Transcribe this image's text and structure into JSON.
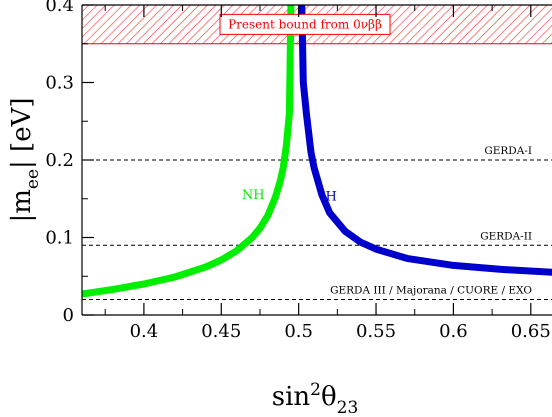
{
  "chart_data": {
    "type": "line",
    "title": "",
    "xlabel": "sin²θ₂₃",
    "xlabel_parts": {
      "base": "sin",
      "sup": "2",
      "theta": "θ",
      "sub": "23"
    },
    "ylabel": "|mee| [eV]",
    "ylabel_parts": {
      "pre": "|m",
      "sub": "ee",
      "post": "| [eV]"
    },
    "xlim": [
      0.36,
      0.665
    ],
    "ylim": [
      0,
      0.4
    ],
    "x_ticks": [
      0.4,
      0.45,
      0.5,
      0.55,
      0.6,
      0.65
    ],
    "x_tick_labels": [
      "0.4",
      "0.45",
      "0.5",
      "0.55",
      "0.6",
      "0.65"
    ],
    "y_ticks": [
      0,
      0.1,
      0.2,
      0.3,
      0.4
    ],
    "y_tick_labels": [
      "0",
      "0.1",
      "0.2",
      "0.3",
      "0.4"
    ],
    "grid": false,
    "excluded_region": {
      "ymin": 0.35,
      "ymax": 0.4,
      "label": "Present bound from 0νββ",
      "color": "#ff0000"
    },
    "reference_lines": [
      {
        "y": 0.2,
        "label": "GERDA-I"
      },
      {
        "y": 0.09,
        "label": "GERDA-II"
      },
      {
        "y": 0.02,
        "label": "GERDA III / Majorana / CUORE / EXO"
      }
    ],
    "series": [
      {
        "name": "NH",
        "color": "#00ee00",
        "x": [
          0.36,
          0.38,
          0.4,
          0.42,
          0.44,
          0.45,
          0.46,
          0.47,
          0.475,
          0.48,
          0.485,
          0.488,
          0.49,
          0.492,
          0.494,
          0.495
        ],
        "y": [
          0.027,
          0.033,
          0.04,
          0.049,
          0.062,
          0.071,
          0.083,
          0.1,
          0.112,
          0.128,
          0.152,
          0.172,
          0.19,
          0.218,
          0.26,
          0.4
        ],
        "label_x": 0.478,
        "label_y": 0.15
      },
      {
        "name": "IH",
        "color": "#0000cc",
        "x": [
          0.502,
          0.503,
          0.505,
          0.508,
          0.51,
          0.515,
          0.52,
          0.53,
          0.54,
          0.55,
          0.57,
          0.6,
          0.63,
          0.665
        ],
        "y": [
          0.4,
          0.3,
          0.26,
          0.21,
          0.19,
          0.155,
          0.132,
          0.108,
          0.094,
          0.085,
          0.073,
          0.064,
          0.059,
          0.055
        ],
        "label_x": 0.514,
        "label_y": 0.148
      }
    ]
  }
}
